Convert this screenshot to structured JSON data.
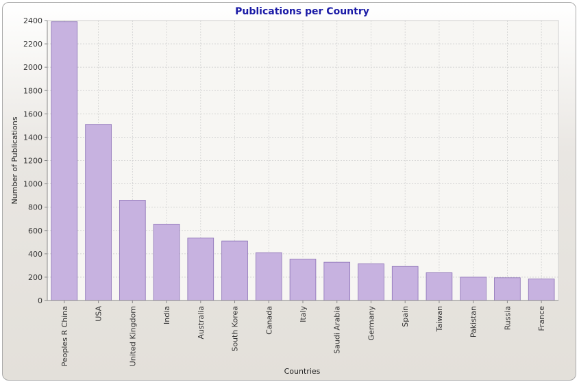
{
  "chart_data": {
    "type": "bar",
    "title": "Publications per Country",
    "xlabel": "Countries",
    "ylabel": "Number of Publications",
    "categories": [
      "Peoples R China",
      "USA",
      "United Kingdom",
      "India",
      "Australia",
      "South Korea",
      "Canada",
      "Italy",
      "Saudi Arabia",
      "Germany",
      "Spain",
      "Taiwan",
      "Pakistan",
      "Russia",
      "France"
    ],
    "values": [
      2390,
      1510,
      860,
      655,
      535,
      510,
      410,
      355,
      328,
      315,
      292,
      238,
      200,
      195,
      185
    ],
    "ylim": [
      0,
      2400
    ],
    "yticks": [
      0,
      200,
      400,
      600,
      800,
      1000,
      1200,
      1400,
      1600,
      1800,
      2000,
      2200,
      2400
    ],
    "grid": true,
    "colors": {
      "bar_fill": "#c7b2e0",
      "bar_stroke": "#8a6fb5",
      "plot_bg": "#f7f6f3",
      "grid": "#d0d0d0",
      "title": "#1a1aa6"
    }
  }
}
